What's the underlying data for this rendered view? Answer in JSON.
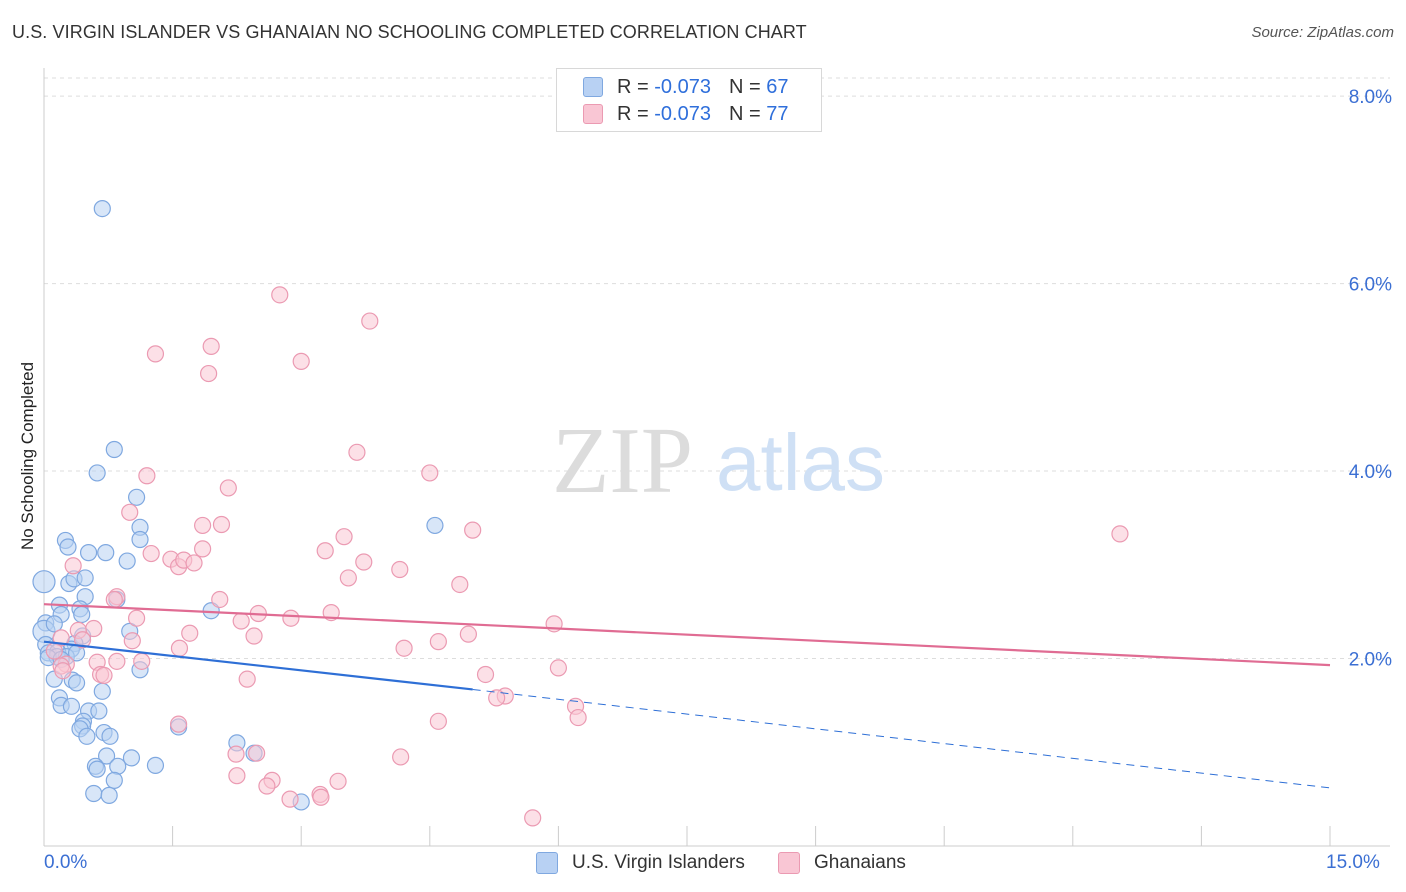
{
  "chart_data": {
    "type": "scatter",
    "title": "U.S. VIRGIN ISLANDER VS GHANAIAN NO SCHOOLING COMPLETED CORRELATION CHART",
    "source": "Source: ZipAtlas.com",
    "watermark_left": "ZIP",
    "watermark_right": "atlas",
    "ylabel": "No Schooling Completed",
    "xlim": [
      0,
      15
    ],
    "ylim": [
      0,
      8.3
    ],
    "x_tick_labels": {
      "min": "0.0%",
      "max": "15.0%"
    },
    "y_ticks": [
      2,
      4,
      6,
      8
    ],
    "y_tick_labels": [
      "2.0%",
      "4.0%",
      "6.0%",
      "8.0%"
    ],
    "legend": [
      {
        "r_label": "R = ",
        "r_value": "-0.073",
        "n_label": "N = ",
        "n_value": "67"
      },
      {
        "r_label": "R = ",
        "r_value": "-0.073",
        "n_label": "N = ",
        "n_value": "77"
      }
    ],
    "colors": {
      "blue_fill": "#b8d1f3",
      "blue_stroke": "#7fa8e0",
      "blue_line": "#2e6fd6",
      "pink_fill": "#f9c6d4",
      "pink_stroke": "#eb9ab2",
      "pink_line": "#e06c93",
      "accent_text": "#3b6fd3",
      "grid": "#dddddd"
    },
    "series": [
      {
        "name": "U.S. Virgin Islanders",
        "trend": {
          "x": [
            0,
            5.0
          ],
          "y": [
            2.18,
            1.67
          ]
        },
        "trend_extension": {
          "x": [
            5.0,
            15.0
          ],
          "y": [
            1.67,
            0.62
          ]
        },
        "points": [
          [
            0.68,
            6.8
          ],
          [
            0.82,
            4.23
          ],
          [
            0.62,
            3.98
          ],
          [
            1.08,
            3.72
          ],
          [
            0.25,
            3.26
          ],
          [
            1.12,
            3.4
          ],
          [
            0.52,
            3.13
          ],
          [
            0.72,
            3.13
          ],
          [
            0.28,
            3.19
          ],
          [
            0.97,
            3.04
          ],
          [
            1.12,
            3.27
          ],
          [
            0.29,
            2.8
          ],
          [
            0.35,
            2.85
          ],
          [
            0.0,
            2.82
          ],
          [
            0.48,
            2.86
          ],
          [
            0.48,
            2.66
          ],
          [
            0.18,
            2.57
          ],
          [
            0.2,
            2.47
          ],
          [
            0.42,
            2.53
          ],
          [
            0.44,
            2.47
          ],
          [
            0.02,
            2.38
          ],
          [
            0.0,
            2.29
          ],
          [
            0.12,
            2.37
          ],
          [
            0.85,
            2.63
          ],
          [
            0.45,
            2.24
          ],
          [
            1.0,
            2.29
          ],
          [
            0.36,
            2.16
          ],
          [
            0.32,
            2.1
          ],
          [
            0.02,
            2.15
          ],
          [
            0.05,
            2.06
          ],
          [
            0.16,
            2.07
          ],
          [
            0.15,
            2.02
          ],
          [
            0.26,
            2.02
          ],
          [
            0.38,
            2.06
          ],
          [
            0.05,
            2.01
          ],
          [
            0.2,
            1.99
          ],
          [
            1.12,
            1.88
          ],
          [
            0.12,
            1.78
          ],
          [
            0.33,
            1.77
          ],
          [
            0.38,
            1.74
          ],
          [
            0.68,
            1.65
          ],
          [
            0.18,
            1.58
          ],
          [
            0.2,
            1.5
          ],
          [
            0.32,
            1.49
          ],
          [
            0.52,
            1.44
          ],
          [
            0.64,
            1.44
          ],
          [
            0.46,
            1.33
          ],
          [
            0.45,
            1.28
          ],
          [
            0.42,
            1.25
          ],
          [
            1.57,
            1.27
          ],
          [
            0.5,
            1.17
          ],
          [
            0.7,
            1.21
          ],
          [
            0.77,
            1.17
          ],
          [
            0.73,
            0.96
          ],
          [
            1.02,
            0.94
          ],
          [
            2.25,
            1.1
          ],
          [
            2.45,
            0.99
          ],
          [
            0.6,
            0.85
          ],
          [
            0.62,
            0.82
          ],
          [
            0.86,
            0.85
          ],
          [
            1.3,
            0.86
          ],
          [
            0.82,
            0.7
          ],
          [
            0.58,
            0.56
          ],
          [
            0.76,
            0.54
          ],
          [
            3.0,
            0.47
          ],
          [
            4.56,
            3.42
          ],
          [
            1.95,
            2.51
          ]
        ]
      },
      {
        "name": "Ghanaians",
        "trend": {
          "x": [
            0,
            15.0
          ],
          "y": [
            2.58,
            1.93
          ]
        },
        "points": [
          [
            2.75,
            5.88
          ],
          [
            3.8,
            5.6
          ],
          [
            1.3,
            5.25
          ],
          [
            1.95,
            5.33
          ],
          [
            3.0,
            5.17
          ],
          [
            1.92,
            5.04
          ],
          [
            3.65,
            4.2
          ],
          [
            1.2,
            3.95
          ],
          [
            4.5,
            3.98
          ],
          [
            2.15,
            3.82
          ],
          [
            1.0,
            3.56
          ],
          [
            2.07,
            3.43
          ],
          [
            1.85,
            3.42
          ],
          [
            3.5,
            3.3
          ],
          [
            5.0,
            3.37
          ],
          [
            12.55,
            3.33
          ],
          [
            1.25,
            3.12
          ],
          [
            1.85,
            3.17
          ],
          [
            3.28,
            3.15
          ],
          [
            1.48,
            3.06
          ],
          [
            1.57,
            2.98
          ],
          [
            1.63,
            3.05
          ],
          [
            3.73,
            3.03
          ],
          [
            0.34,
            2.99
          ],
          [
            4.15,
            2.95
          ],
          [
            3.55,
            2.86
          ],
          [
            1.75,
            3.02
          ],
          [
            4.85,
            2.79
          ],
          [
            0.85,
            2.66
          ],
          [
            0.82,
            2.63
          ],
          [
            2.05,
            2.63
          ],
          [
            3.35,
            2.49
          ],
          [
            2.5,
            2.48
          ],
          [
            2.88,
            2.43
          ],
          [
            1.08,
            2.43
          ],
          [
            2.3,
            2.4
          ],
          [
            5.95,
            2.37
          ],
          [
            0.58,
            2.32
          ],
          [
            0.4,
            2.3
          ],
          [
            1.7,
            2.27
          ],
          [
            4.95,
            2.26
          ],
          [
            0.45,
            2.2
          ],
          [
            2.45,
            2.24
          ],
          [
            0.2,
            2.22
          ],
          [
            1.03,
            2.19
          ],
          [
            4.6,
            2.18
          ],
          [
            1.58,
            2.11
          ],
          [
            4.2,
            2.11
          ],
          [
            0.12,
            2.08
          ],
          [
            0.62,
            1.96
          ],
          [
            0.85,
            1.97
          ],
          [
            1.14,
            1.97
          ],
          [
            0.26,
            1.94
          ],
          [
            0.2,
            1.92
          ],
          [
            0.22,
            1.87
          ],
          [
            6.0,
            1.9
          ],
          [
            0.66,
            1.83
          ],
          [
            0.7,
            1.82
          ],
          [
            5.15,
            1.83
          ],
          [
            2.37,
            1.78
          ],
          [
            5.38,
            1.6
          ],
          [
            5.28,
            1.58
          ],
          [
            6.2,
            1.49
          ],
          [
            1.57,
            1.3
          ],
          [
            4.6,
            1.33
          ],
          [
            6.23,
            1.37
          ],
          [
            2.24,
            0.98
          ],
          [
            2.48,
            0.99
          ],
          [
            4.16,
            0.95
          ],
          [
            2.25,
            0.75
          ],
          [
            2.66,
            0.7
          ],
          [
            2.6,
            0.64
          ],
          [
            3.43,
            0.69
          ],
          [
            2.87,
            0.5
          ],
          [
            3.22,
            0.55
          ],
          [
            3.23,
            0.52
          ],
          [
            5.7,
            0.3
          ]
        ]
      }
    ]
  },
  "bottom_legend": {
    "series1": "U.S. Virgin Islanders",
    "series2": "Ghanaians"
  }
}
